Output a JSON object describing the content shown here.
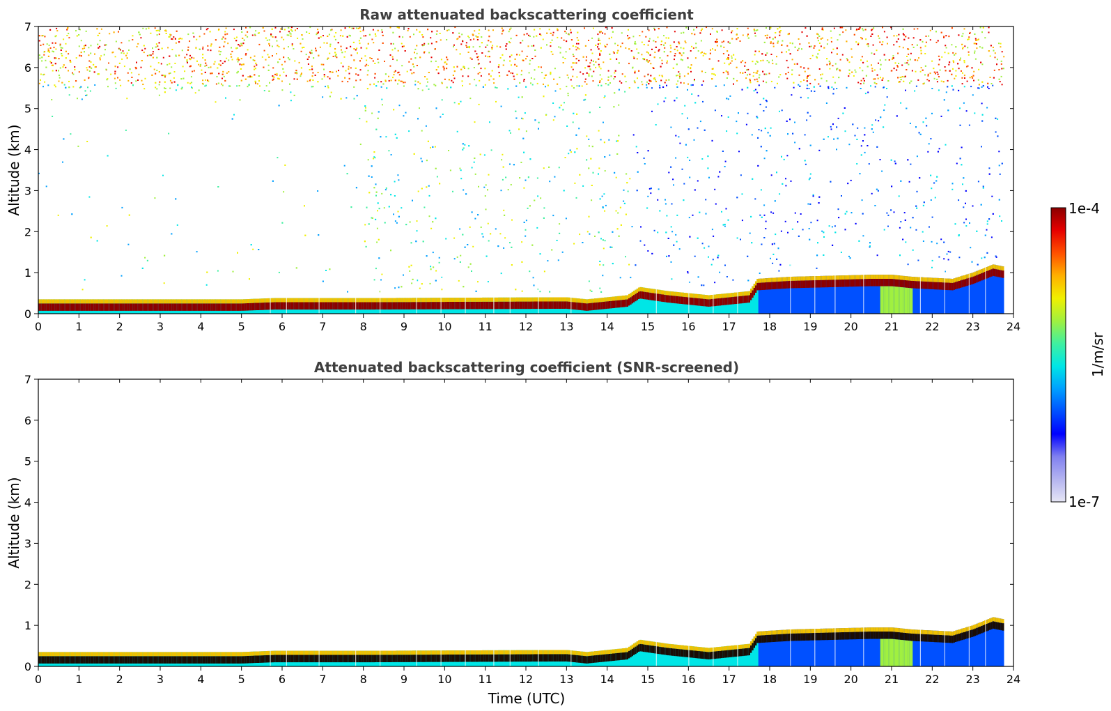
{
  "chart_data": [
    {
      "type": "heatmap",
      "title": "Raw attenuated backscattering coefficient",
      "xlabel": "",
      "ylabel": "Altitude (km)",
      "xlim": [
        0,
        24
      ],
      "ylim": [
        0,
        7
      ],
      "xticks": [
        0,
        1,
        2,
        3,
        4,
        5,
        6,
        7,
        8,
        9,
        10,
        11,
        12,
        13,
        14,
        15,
        16,
        17,
        18,
        19,
        20,
        21,
        22,
        23,
        24
      ],
      "yticks": [
        0,
        1,
        2,
        3,
        4,
        5,
        6,
        7
      ],
      "data_extent_hours": [
        0,
        23.75
      ],
      "noise_above_layer": true,
      "layer_top_km": {
        "time": [
          0,
          5,
          5.8,
          8,
          13,
          13.5,
          14.5,
          14.8,
          15.5,
          16.5,
          17.5,
          17.7,
          18.5,
          20.5,
          21,
          21.5,
          22.5,
          23,
          23.5,
          23.75
        ],
        "top": [
          0.35,
          0.35,
          0.38,
          0.38,
          0.4,
          0.35,
          0.45,
          0.65,
          0.55,
          0.45,
          0.55,
          0.85,
          0.9,
          0.95,
          0.95,
          0.9,
          0.85,
          1.0,
          1.2,
          1.15
        ]
      }
    },
    {
      "type": "heatmap",
      "title": "Attenuated backscattering coefficient (SNR-screened)",
      "xlabel": "Time (UTC)",
      "ylabel": "Altitude (km)",
      "xlim": [
        0,
        24
      ],
      "ylim": [
        0,
        7
      ],
      "xticks": [
        0,
        1,
        2,
        3,
        4,
        5,
        6,
        7,
        8,
        9,
        10,
        11,
        12,
        13,
        14,
        15,
        16,
        17,
        18,
        19,
        20,
        21,
        22,
        23,
        24
      ],
      "yticks": [
        0,
        1,
        2,
        3,
        4,
        5,
        6,
        7
      ],
      "data_extent_hours": [
        0,
        23.75
      ],
      "noise_above_layer": false,
      "layer_top_km": {
        "time": [
          0,
          5,
          5.8,
          8,
          13,
          13.5,
          14.5,
          14.8,
          15.5,
          16.5,
          17.5,
          17.7,
          18.5,
          20.5,
          21,
          21.5,
          22.5,
          23,
          23.5,
          23.75
        ],
        "top": [
          0.35,
          0.35,
          0.38,
          0.38,
          0.4,
          0.35,
          0.45,
          0.65,
          0.55,
          0.45,
          0.55,
          0.85,
          0.9,
          0.95,
          0.95,
          0.9,
          0.85,
          1.0,
          1.2,
          1.15
        ]
      }
    }
  ],
  "colorbar": {
    "max_label": "1e-4",
    "min_label": "1e-7",
    "unit": "1/m/sr",
    "colors": [
      "#e6e6f5",
      "#b4b4f0",
      "#8080f0",
      "#0000ff",
      "#0050ff",
      "#00a0ff",
      "#00e6e6",
      "#40f0a0",
      "#a0f040",
      "#f0f000",
      "#ffb000",
      "#ff5000",
      "#e60000",
      "#8b0000"
    ]
  }
}
